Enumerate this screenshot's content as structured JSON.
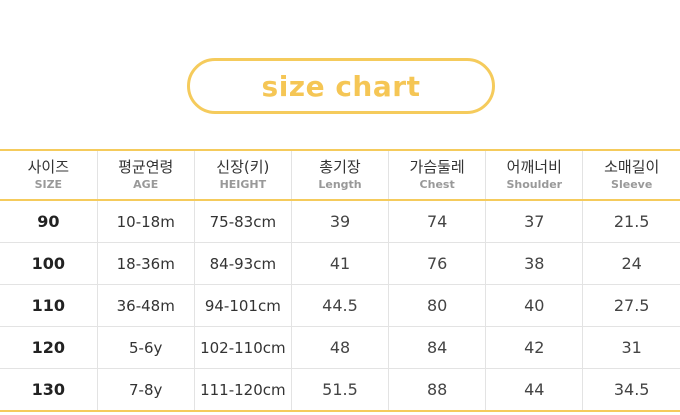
{
  "title": "size chart",
  "accent": "#f5cb5c",
  "headers": [
    {
      "ko": "사이즈",
      "en": "SIZE"
    },
    {
      "ko": "평균연령",
      "en": "AGE"
    },
    {
      "ko": "신장(키)",
      "en": "HEIGHT"
    },
    {
      "ko": "총기장",
      "en": "Length"
    },
    {
      "ko": "가슴둘레",
      "en": "Chest"
    },
    {
      "ko": "어깨너비",
      "en": "Shoulder"
    },
    {
      "ko": "소매길이",
      "en": "Sleeve"
    }
  ],
  "rows": [
    [
      "90",
      "10-18m",
      "75-83cm",
      "39",
      "74",
      "37",
      "21.5"
    ],
    [
      "100",
      "18-36m",
      "84-93cm",
      "41",
      "76",
      "38",
      "24"
    ],
    [
      "110",
      "36-48m",
      "94-101cm",
      "44.5",
      "80",
      "40",
      "27.5"
    ],
    [
      "120",
      "5-6y",
      "102-110cm",
      "48",
      "84",
      "42",
      "31"
    ],
    [
      "130",
      "7-8y",
      "111-120cm",
      "51.5",
      "88",
      "44",
      "34.5"
    ]
  ]
}
